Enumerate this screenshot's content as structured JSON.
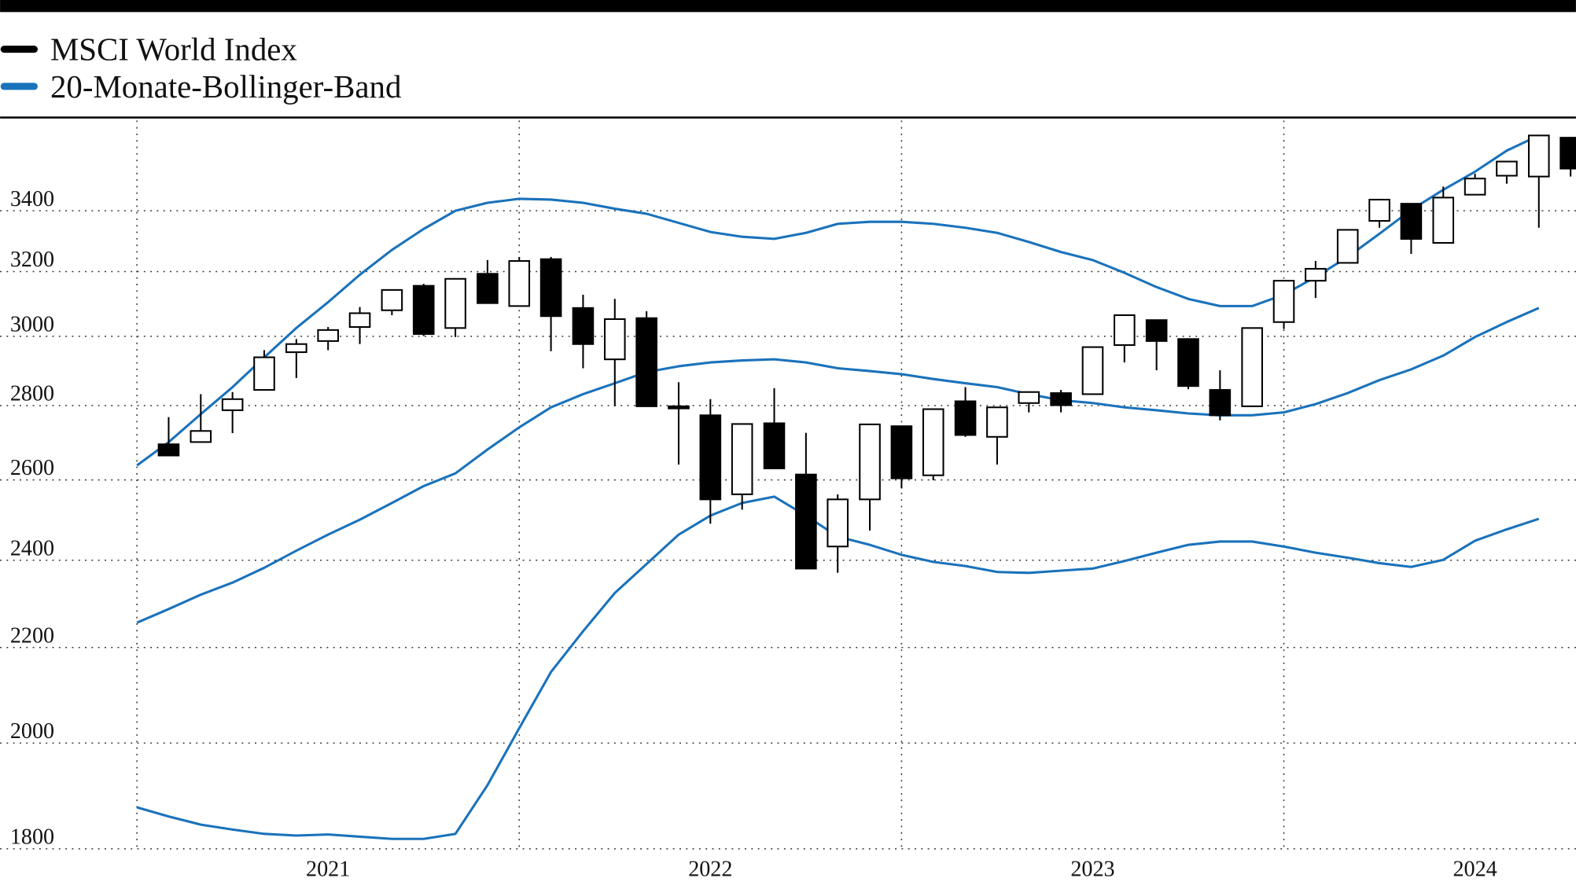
{
  "chart_data": {
    "type": "candlestick",
    "log_y": true,
    "grid": true,
    "legend_position": "top-left",
    "xlim": [
      2020.142,
      2024.264
    ],
    "xticks": [
      2021,
      2022,
      2023,
      2024
    ],
    "xgrid": [
      2020.5,
      2021.5,
      2022.5,
      2023.5
    ],
    "ylim": [
      1800,
      3720
    ],
    "yticks": [
      1800,
      2000,
      2200,
      2400,
      2600,
      2800,
      3000,
      3200,
      3400
    ],
    "series": [
      {
        "name": "MSCI World Index",
        "type": "candlestick",
        "color": "#000000",
        "up_color": "#ffffff",
        "x": [
          2020.583,
          2020.667,
          2020.75,
          2020.833,
          2020.917,
          2021.0,
          2021.083,
          2021.167,
          2021.25,
          2021.333,
          2021.417,
          2021.5,
          2021.583,
          2021.667,
          2021.75,
          2021.833,
          2021.917,
          2022.0,
          2022.083,
          2022.167,
          2022.25,
          2022.333,
          2022.417,
          2022.5,
          2022.583,
          2022.667,
          2022.75,
          2022.833,
          2022.917,
          2023.0,
          2023.083,
          2023.167,
          2023.25,
          2023.333,
          2023.417,
          2023.5,
          2023.583,
          2023.667,
          2023.75,
          2023.833,
          2023.917,
          2024.0,
          2024.083,
          2024.167,
          2024.25
        ],
        "open": [
          2694,
          2700,
          2787,
          2844,
          2953,
          2986,
          3028,
          3079,
          3155,
          3025,
          3193,
          3092,
          3240,
          3086,
          2932,
          3055,
          2798,
          2773,
          2563,
          2751,
          2614,
          2433,
          2550,
          2743,
          2612,
          2812,
          2714,
          2807,
          2835,
          2832,
          2974,
          3049,
          2992,
          2844,
          2798,
          3043,
          3171,
          3228,
          3366,
          3424,
          3293,
          3455,
          3521,
          3518,
          3657
        ],
        "high": [
          2768,
          2832,
          2838,
          2959,
          2992,
          3028,
          3089,
          3142,
          3161,
          3177,
          3237,
          3247,
          3247,
          3127,
          3114,
          3076,
          2866,
          2818,
          2749,
          2849,
          2725,
          2563,
          2748,
          2743,
          2790,
          2852,
          2795,
          2838,
          2844,
          2968,
          3064,
          3049,
          2992,
          2900,
          3025,
          3171,
          3234,
          3336,
          3438,
          3424,
          3483,
          3528,
          3571,
          3665,
          3657
        ],
        "low": [
          2664,
          2700,
          2724,
          2844,
          2878,
          2959,
          2977,
          3064,
          3001,
          2998,
          3101,
          3092,
          2956,
          2906,
          2798,
          2798,
          2640,
          2489,
          2524,
          2630,
          2380,
          2370,
          2472,
          2578,
          2599,
          2714,
          2640,
          2781,
          2781,
          2832,
          2923,
          2900,
          2846,
          2759,
          2798,
          3022,
          3117,
          3228,
          3343,
          3257,
          3293,
          3455,
          3493,
          3343,
          3518
        ],
        "close": [
          2664,
          2730,
          2818,
          2938,
          2977,
          3019,
          3070,
          3142,
          3007,
          3177,
          3101,
          3234,
          3061,
          2977,
          3052,
          2798,
          2792,
          2550,
          2749,
          2630,
          2380,
          2550,
          2748,
          2604,
          2790,
          2719,
          2795,
          2838,
          2801,
          2968,
          3064,
          2986,
          2855,
          2773,
          3025,
          3171,
          3209,
          3336,
          3438,
          3306,
          3445,
          3511,
          3571,
          3665,
          3546
        ]
      },
      {
        "name": "20-Monate-Bollinger-Band",
        "type": "line",
        "color": "#1a72bb",
        "x": [
          2020.5,
          2020.583,
          2020.667,
          2020.75,
          2020.833,
          2020.917,
          2021.0,
          2021.083,
          2021.167,
          2021.25,
          2021.333,
          2021.417,
          2021.5,
          2021.583,
          2021.667,
          2021.75,
          2021.833,
          2021.917,
          2022.0,
          2022.083,
          2022.167,
          2022.25,
          2022.333,
          2022.417,
          2022.5,
          2022.583,
          2022.667,
          2022.75,
          2022.833,
          2022.917,
          2023.0,
          2023.083,
          2023.167,
          2023.25,
          2023.333,
          2023.417,
          2023.5,
          2023.583,
          2023.667,
          2023.75,
          2023.833,
          2023.917,
          2024.0,
          2024.083,
          2024.167
        ],
        "upper": [
          2638,
          2700,
          2776,
          2852,
          2938,
          3025,
          3104,
          3190,
          3270,
          3339,
          3400,
          3427,
          3441,
          3438,
          3427,
          3407,
          3390,
          3359,
          3329,
          3313,
          3306,
          3326,
          3356,
          3363,
          3363,
          3356,
          3343,
          3326,
          3296,
          3263,
          3237,
          3196,
          3151,
          3114,
          3092,
          3092,
          3127,
          3183,
          3247,
          3323,
          3403,
          3472,
          3535,
          3610,
          3665
        ],
        "middle": [
          2255,
          2286,
          2319,
          2347,
          2382,
          2423,
          2462,
          2499,
          2541,
          2584,
          2617,
          2680,
          2740,
          2795,
          2832,
          2863,
          2895,
          2912,
          2923,
          2929,
          2932,
          2923,
          2906,
          2898,
          2889,
          2875,
          2863,
          2852,
          2832,
          2815,
          2807,
          2795,
          2787,
          2778,
          2773,
          2773,
          2781,
          2804,
          2835,
          2872,
          2903,
          2943,
          2998,
          3043,
          3086
        ],
        "lower": [
          1876,
          1859,
          1844,
          1835,
          1827,
          1824,
          1826,
          1822,
          1818,
          1818,
          1827,
          1918,
          2030,
          2147,
          2236,
          2323,
          2391,
          2462,
          2509,
          2541,
          2557,
          2509,
          2457,
          2437,
          2413,
          2396,
          2386,
          2372,
          2370,
          2375,
          2380,
          2398,
          2418,
          2437,
          2445,
          2445,
          2433,
          2418,
          2406,
          2393,
          2384,
          2401,
          2447,
          2475,
          2501
        ]
      }
    ]
  }
}
